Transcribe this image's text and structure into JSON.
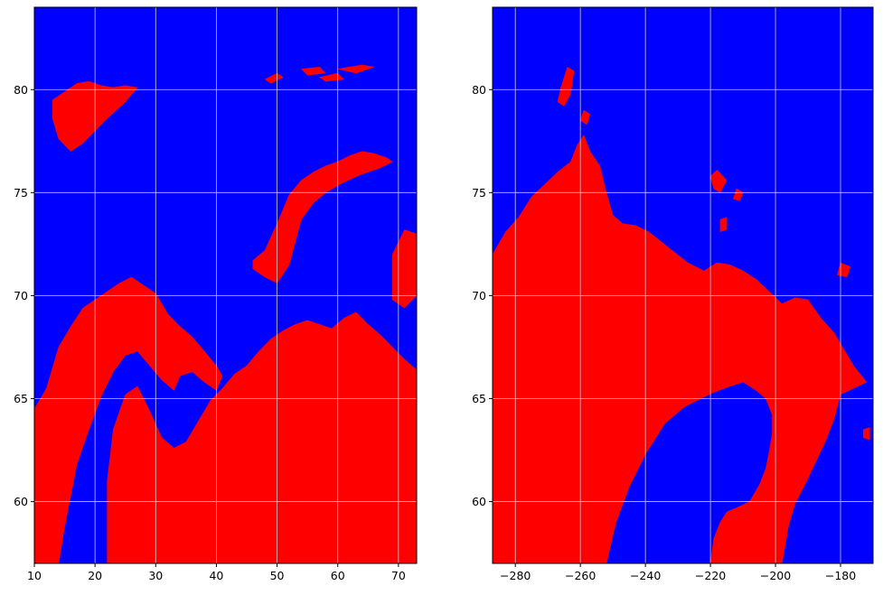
{
  "colors": {
    "land": "#ff0000",
    "sea": "#0000ff",
    "grid": "#cccccc",
    "frame": "#000000"
  },
  "chart_data": [
    {
      "type": "map",
      "title": "",
      "xlabel": "",
      "ylabel": "",
      "xlim": [
        10,
        73
      ],
      "ylim": [
        57,
        84
      ],
      "grid": true,
      "xticks": [
        10,
        20,
        30,
        40,
        50,
        60,
        70
      ],
      "xtick_labels": [
        "10",
        "20",
        "30",
        "40",
        "50",
        "60",
        "70"
      ],
      "yticks": [
        60,
        65,
        70,
        75,
        80
      ],
      "ytick_labels": [
        "60",
        "65",
        "70",
        "75",
        "80"
      ],
      "land_polygons": [
        [
          [
            10,
            57
          ],
          [
            10,
            64.5
          ],
          [
            12,
            65.5
          ],
          [
            14,
            67.5
          ],
          [
            16,
            68.5
          ],
          [
            18,
            69.4
          ],
          [
            20,
            69.8
          ],
          [
            22,
            70.2
          ],
          [
            24,
            70.6
          ],
          [
            26,
            70.9
          ],
          [
            28,
            70.5
          ],
          [
            30,
            70.1
          ],
          [
            31,
            69.6
          ],
          [
            32,
            69.1
          ],
          [
            34,
            68.5
          ],
          [
            36,
            68.0
          ],
          [
            38,
            67.3
          ],
          [
            40,
            66.6
          ],
          [
            41,
            66.1
          ],
          [
            40,
            65.4
          ],
          [
            38,
            65.8
          ],
          [
            36,
            66.3
          ],
          [
            34,
            66.1
          ],
          [
            33,
            65.4
          ],
          [
            31,
            65.9
          ],
          [
            29,
            66.6
          ],
          [
            27,
            67.3
          ],
          [
            25,
            67.1
          ],
          [
            23,
            66.3
          ],
          [
            21,
            65.1
          ],
          [
            19,
            63.5
          ],
          [
            17,
            61.8
          ],
          [
            16,
            60.3
          ],
          [
            15,
            58.8
          ],
          [
            14,
            57
          ]
        ],
        [
          [
            22,
            57
          ],
          [
            22,
            61.0
          ],
          [
            23,
            63.5
          ],
          [
            25,
            65.2
          ],
          [
            27,
            65.6
          ],
          [
            29,
            64.4
          ],
          [
            31,
            63.1
          ],
          [
            33,
            62.6
          ],
          [
            35,
            62.9
          ],
          [
            37,
            63.9
          ],
          [
            39,
            64.9
          ],
          [
            41,
            65.5
          ],
          [
            43,
            66.2
          ],
          [
            45,
            66.6
          ],
          [
            47,
            67.3
          ],
          [
            49,
            67.9
          ],
          [
            51,
            68.3
          ],
          [
            53,
            68.6
          ],
          [
            55,
            68.8
          ],
          [
            57,
            68.6
          ],
          [
            59,
            68.4
          ],
          [
            61,
            68.9
          ],
          [
            63,
            69.2
          ],
          [
            65,
            68.6
          ],
          [
            67,
            68.1
          ],
          [
            69,
            67.5
          ],
          [
            71,
            66.9
          ],
          [
            73,
            66.4
          ],
          [
            73,
            57
          ]
        ],
        [
          [
            13,
            79.5
          ],
          [
            15,
            79.9
          ],
          [
            17,
            80.3
          ],
          [
            19,
            80.4
          ],
          [
            21,
            80.2
          ],
          [
            23,
            80.1
          ],
          [
            25,
            80.2
          ],
          [
            27,
            80.1
          ],
          [
            25,
            79.4
          ],
          [
            22,
            78.6
          ],
          [
            20,
            78.0
          ],
          [
            18,
            77.4
          ],
          [
            16,
            77.0
          ],
          [
            14,
            77.6
          ],
          [
            13,
            78.6
          ]
        ],
        [
          [
            46,
            71.7
          ],
          [
            48,
            72.2
          ],
          [
            50,
            73.5
          ],
          [
            52,
            74.9
          ],
          [
            54,
            75.6
          ],
          [
            56,
            76.0
          ],
          [
            58,
            76.3
          ],
          [
            60,
            76.5
          ],
          [
            62,
            76.8
          ],
          [
            64,
            77.0
          ],
          [
            66,
            76.9
          ],
          [
            68,
            76.7
          ],
          [
            69,
            76.5
          ],
          [
            67,
            76.2
          ],
          [
            64,
            75.9
          ],
          [
            61,
            75.5
          ],
          [
            58,
            75.0
          ],
          [
            56,
            74.5
          ],
          [
            54,
            73.7
          ],
          [
            53,
            72.6
          ],
          [
            52,
            71.5
          ],
          [
            50,
            70.6
          ],
          [
            48,
            70.9
          ],
          [
            46,
            71.3
          ]
        ],
        [
          [
            48,
            80.5
          ],
          [
            50,
            80.8
          ],
          [
            51,
            80.6
          ],
          [
            49,
            80.3
          ]
        ],
        [
          [
            54,
            81.0
          ],
          [
            57,
            81.1
          ],
          [
            58,
            80.8
          ],
          [
            55,
            80.7
          ]
        ],
        [
          [
            57,
            80.6
          ],
          [
            60,
            80.8
          ],
          [
            61,
            80.5
          ],
          [
            58,
            80.4
          ]
        ],
        [
          [
            60,
            81.0
          ],
          [
            64,
            81.2
          ],
          [
            66,
            81.1
          ],
          [
            63,
            80.8
          ]
        ],
        [
          [
            69,
            72.0
          ],
          [
            71,
            73.2
          ],
          [
            73,
            73.0
          ],
          [
            73,
            70.0
          ],
          [
            71,
            69.4
          ],
          [
            69,
            69.8
          ]
        ]
      ]
    },
    {
      "type": "map",
      "title": "",
      "xlabel": "",
      "ylabel": "",
      "xlim": [
        -287,
        -170
      ],
      "ylim": [
        57,
        84
      ],
      "grid": true,
      "xticks": [
        -280,
        -260,
        -240,
        -220,
        -200,
        -180
      ],
      "xtick_labels": [
        "−280",
        "−260",
        "−240",
        "−220",
        "−200",
        "−180"
      ],
      "yticks": [
        60,
        65,
        70,
        75,
        80
      ],
      "ytick_labels": [
        "60",
        "65",
        "70",
        "75",
        "80"
      ],
      "land_polygons": [
        [
          [
            -287,
            57
          ],
          [
            -287,
            72.0
          ],
          [
            -283,
            73.1
          ],
          [
            -279,
            73.8
          ],
          [
            -275,
            74.8
          ],
          [
            -271,
            75.4
          ],
          [
            -267,
            76.0
          ],
          [
            -263,
            76.5
          ],
          [
            -261,
            77.3
          ],
          [
            -259,
            77.8
          ],
          [
            -257,
            77.0
          ],
          [
            -254,
            76.3
          ],
          [
            -252,
            75.0
          ],
          [
            -250,
            73.9
          ],
          [
            -247,
            73.5
          ],
          [
            -243,
            73.4
          ],
          [
            -239,
            73.1
          ],
          [
            -235,
            72.6
          ],
          [
            -231,
            72.1
          ],
          [
            -227,
            71.6
          ],
          [
            -222,
            71.2
          ],
          [
            -218,
            71.6
          ],
          [
            -214,
            71.5
          ],
          [
            -210,
            71.2
          ],
          [
            -206,
            70.8
          ],
          [
            -202,
            70.2
          ],
          [
            -198,
            69.6
          ],
          [
            -194,
            69.9
          ],
          [
            -190,
            69.8
          ],
          [
            -186,
            68.9
          ],
          [
            -182,
            68.2
          ],
          [
            -179,
            67.4
          ],
          [
            -176,
            66.6
          ],
          [
            -172,
            65.8
          ],
          [
            -176,
            65.5
          ],
          [
            -180,
            65.2
          ],
          [
            -182,
            64.0
          ],
          [
            -185,
            62.8
          ],
          [
            -188,
            61.8
          ],
          [
            -191,
            60.8
          ],
          [
            -194,
            59.9
          ],
          [
            -196,
            58.8
          ],
          [
            -198,
            57
          ],
          [
            -220,
            57
          ],
          [
            -219,
            58.2
          ],
          [
            -217,
            59.0
          ],
          [
            -215,
            59.5
          ],
          [
            -212,
            59.7
          ],
          [
            -208,
            60.0
          ],
          [
            -205,
            60.8
          ],
          [
            -203,
            61.6
          ],
          [
            -202,
            62.4
          ],
          [
            -201,
            63.3
          ],
          [
            -201,
            64.2
          ],
          [
            -203,
            65.0
          ],
          [
            -206,
            65.4
          ],
          [
            -210,
            65.8
          ],
          [
            -214,
            65.6
          ],
          [
            -219,
            65.3
          ],
          [
            -223,
            65.0
          ],
          [
            -228,
            64.6
          ],
          [
            -234,
            63.8
          ],
          [
            -240,
            62.3
          ],
          [
            -245,
            60.7
          ],
          [
            -249,
            59.0
          ],
          [
            -252,
            57
          ]
        ],
        [
          [
            -266,
            80.1
          ],
          [
            -264,
            81.1
          ],
          [
            -262,
            80.9
          ],
          [
            -263,
            79.8
          ],
          [
            -265,
            79.2
          ],
          [
            -267,
            79.4
          ]
        ],
        [
          [
            -259,
            79.0
          ],
          [
            -257,
            78.8
          ],
          [
            -258,
            78.3
          ],
          [
            -260,
            78.5
          ]
        ],
        [
          [
            -220,
            75.8
          ],
          [
            -218,
            76.1
          ],
          [
            -215,
            75.6
          ],
          [
            -217,
            75.0
          ],
          [
            -219,
            75.2
          ]
        ],
        [
          [
            -212,
            75.2
          ],
          [
            -210,
            75.0
          ],
          [
            -211,
            74.6
          ],
          [
            -213,
            74.7
          ]
        ],
        [
          [
            -217,
            73.7
          ],
          [
            -215,
            73.8
          ],
          [
            -215,
            73.2
          ],
          [
            -217,
            73.1
          ]
        ],
        [
          [
            -180,
            71.6
          ],
          [
            -177,
            71.4
          ],
          [
            -178,
            70.9
          ],
          [
            -181,
            71.0
          ]
        ],
        [
          [
            -173,
            63.5
          ],
          [
            -171,
            63.6
          ],
          [
            -171,
            63.0
          ],
          [
            -173,
            63.1
          ]
        ]
      ]
    }
  ]
}
